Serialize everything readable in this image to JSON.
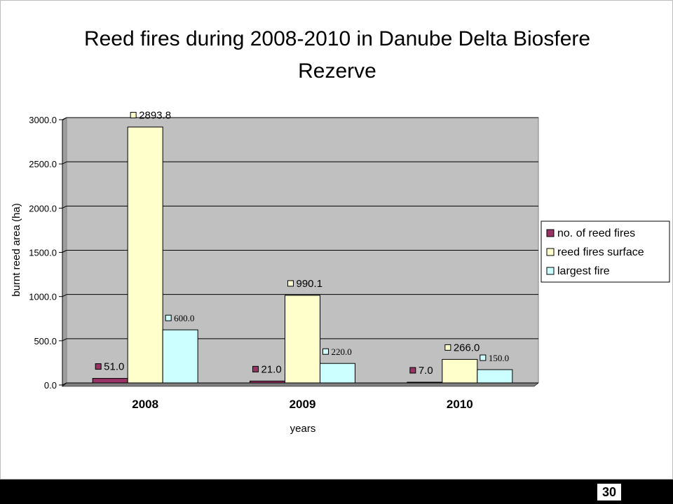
{
  "page_number": "30",
  "chart_data": {
    "type": "bar",
    "title": "Reed fires during 2008-2010 in Danube Delta Biosfere Rezerve",
    "title_lines": [
      "Reed fires during 2008-2010 in Danube Delta Biosfere",
      "Rezerve"
    ],
    "xlabel": "years",
    "ylabel": "burnt reed area (ha)",
    "categories": [
      "2008",
      "2009",
      "2010"
    ],
    "ylim": [
      0,
      3000
    ],
    "yticks": [
      "0.0",
      "500.0",
      "1000.0",
      "1500.0",
      "2000.0",
      "2500.0",
      "3000.0"
    ],
    "grid": true,
    "legend_position": "right",
    "plot_background": "#c0c0c0",
    "series": [
      {
        "name": "no. of reed fires",
        "color": "#993366",
        "values": [
          51.0,
          21.0,
          7.0
        ],
        "labels": [
          "51.0",
          "21.0",
          "7.0"
        ]
      },
      {
        "name": "reed fires surface",
        "color": "#ffffcc",
        "values": [
          2893.8,
          990.1,
          266.0
        ],
        "labels": [
          "2893.8",
          "990.1",
          "266.0"
        ]
      },
      {
        "name": "largest fire",
        "color": "#ccffff",
        "values": [
          600.0,
          220.0,
          150.0
        ],
        "labels": [
          "600.0",
          "220.0",
          "150.0"
        ]
      }
    ]
  }
}
